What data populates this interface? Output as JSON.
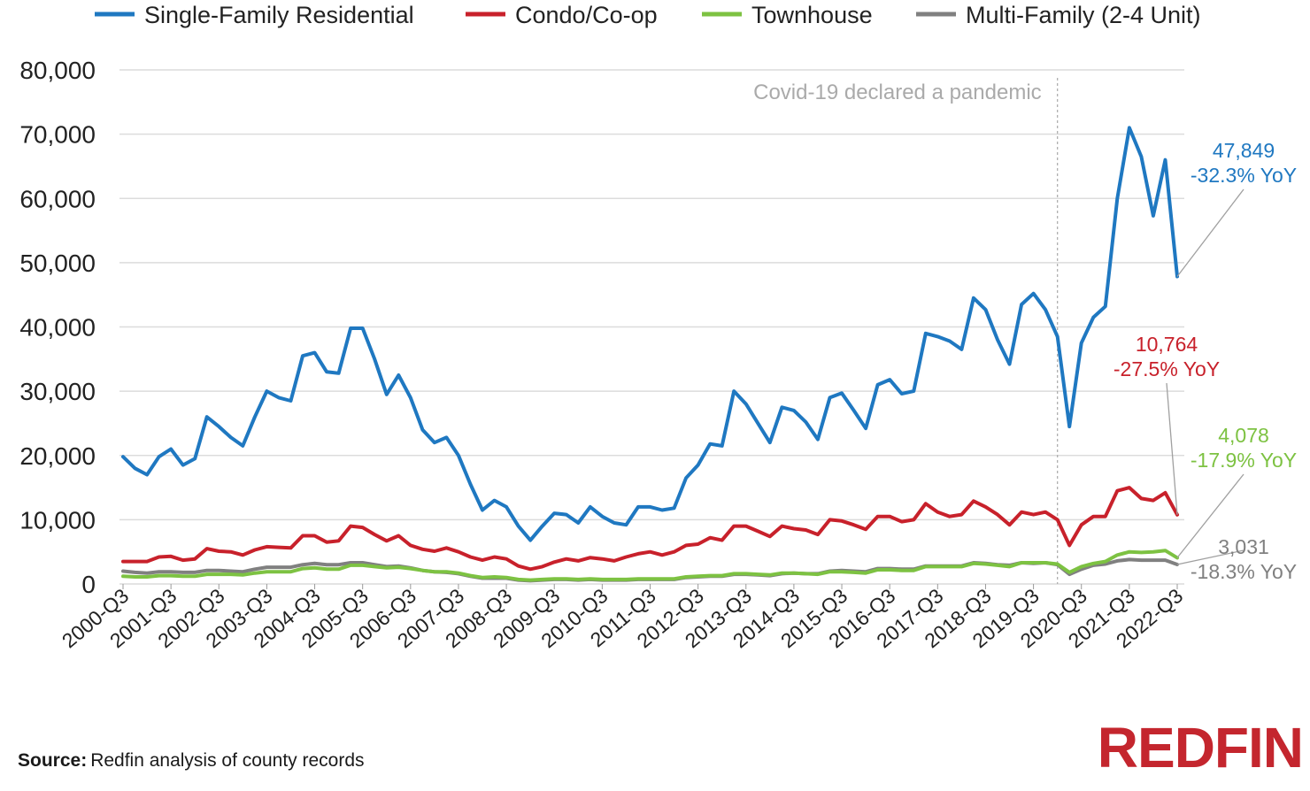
{
  "chart_data": {
    "type": "line",
    "title": "",
    "xlabel": "",
    "ylabel": "",
    "ylim": [
      0,
      80000
    ],
    "yticks": [
      0,
      10000,
      20000,
      30000,
      40000,
      50000,
      60000,
      70000,
      80000
    ],
    "ytick_labels": [
      "0",
      "10,000",
      "20,000",
      "30,000",
      "40,000",
      "50,000",
      "60,000",
      "70,000",
      "80,000"
    ],
    "grid": "horizontal",
    "legend_position": "top",
    "x_tick_labels": [
      "2000-Q3",
      "2001-Q3",
      "2002-Q3",
      "2003-Q3",
      "2004-Q3",
      "2005-Q3",
      "2006-Q3",
      "2007-Q3",
      "2008-Q3",
      "2009-Q3",
      "2010-Q3",
      "2011-Q3",
      "2012-Q3",
      "2013-Q3",
      "2014-Q3",
      "2015-Q3",
      "2016-Q3",
      "2017-Q3",
      "2018-Q3",
      "2019-Q3",
      "2020-Q3",
      "2021-Q3",
      "2022-Q3"
    ],
    "x_start": "2000-Q3",
    "x_end": "2022-Q3",
    "series": [
      {
        "name": "Single-Family Residential",
        "color": "#1f78c1",
        "values": [
          19800,
          18000,
          17000,
          19800,
          21000,
          18500,
          19500,
          26000,
          24500,
          22800,
          21500,
          26000,
          30000,
          29000,
          28500,
          35500,
          36000,
          33000,
          32800,
          39800,
          39800,
          35000,
          29500,
          32500,
          29000,
          24000,
          22000,
          22800,
          20000,
          15500,
          11500,
          13000,
          12000,
          9000,
          6800,
          9000,
          11000,
          10800,
          9500,
          12000,
          10500,
          9500,
          9200,
          12000,
          12000,
          11500,
          11800,
          16500,
          18500,
          21800,
          21500,
          30000,
          28000,
          25000,
          22000,
          27500,
          27000,
          25200,
          22500,
          29000,
          29700,
          27000,
          24200,
          31000,
          31800,
          29600,
          30000,
          39000,
          38500,
          37800,
          36500,
          44500,
          42700,
          38000,
          34200,
          43500,
          45200,
          42700,
          38500,
          24500,
          37500,
          41500,
          43200,
          60000,
          71000,
          66500,
          57300,
          66000,
          47849
        ]
      },
      {
        "name": "Condo/Co-op",
        "color": "#c8212b",
        "values": [
          3500,
          3500,
          3500,
          4200,
          4300,
          3700,
          3900,
          5500,
          5100,
          5000,
          4500,
          5300,
          5800,
          5700,
          5600,
          7500,
          7500,
          6500,
          6700,
          9000,
          8800,
          7700,
          6700,
          7500,
          6000,
          5400,
          5100,
          5600,
          5000,
          4200,
          3700,
          4200,
          3900,
          2800,
          2300,
          2700,
          3400,
          3900,
          3600,
          4100,
          3900,
          3600,
          4200,
          4700,
          5000,
          4500,
          5000,
          6000,
          6200,
          7200,
          6800,
          9000,
          9000,
          8200,
          7400,
          9000,
          8600,
          8400,
          7700,
          10000,
          9800,
          9200,
          8500,
          10500,
          10500,
          9700,
          10000,
          12500,
          11200,
          10500,
          10800,
          12900,
          12000,
          10800,
          9200,
          11200,
          10800,
          11200,
          10000,
          6000,
          9200,
          10500,
          10500,
          14500,
          15000,
          13300,
          13000,
          14200,
          10764
        ]
      },
      {
        "name": "Townhouse",
        "color": "#7dc242",
        "values": [
          1200,
          1100,
          1100,
          1300,
          1300,
          1200,
          1200,
          1500,
          1500,
          1500,
          1400,
          1700,
          1900,
          1900,
          1900,
          2400,
          2500,
          2300,
          2300,
          2900,
          2900,
          2700,
          2500,
          2600,
          2400,
          2100,
          1900,
          1900,
          1700,
          1300,
          1000,
          1100,
          1000,
          700,
          600,
          700,
          800,
          800,
          700,
          800,
          700,
          700,
          700,
          800,
          800,
          800,
          800,
          1100,
          1200,
          1300,
          1300,
          1600,
          1600,
          1500,
          1400,
          1700,
          1700,
          1600,
          1500,
          1900,
          1900,
          1800,
          1700,
          2200,
          2200,
          2100,
          2100,
          2700,
          2700,
          2700,
          2700,
          3200,
          3100,
          2900,
          2700,
          3300,
          3300,
          3300,
          3100,
          1800,
          2700,
          3200,
          3500,
          4500,
          5000,
          4900,
          5000,
          5200,
          4078
        ]
      },
      {
        "name": "Multi-Family (2-4 Unit)",
        "color": "#808080",
        "values": [
          2000,
          1800,
          1700,
          1900,
          1900,
          1800,
          1800,
          2100,
          2100,
          2000,
          1900,
          2300,
          2600,
          2600,
          2600,
          3000,
          3200,
          3000,
          3000,
          3300,
          3300,
          3000,
          2700,
          2800,
          2500,
          2100,
          1900,
          1800,
          1600,
          1200,
          900,
          900,
          900,
          600,
          500,
          600,
          700,
          700,
          600,
          700,
          600,
          600,
          600,
          700,
          700,
          700,
          700,
          1000,
          1100,
          1200,
          1200,
          1500,
          1500,
          1400,
          1300,
          1600,
          1700,
          1600,
          1600,
          2000,
          2100,
          2000,
          1900,
          2400,
          2400,
          2300,
          2300,
          2800,
          2800,
          2800,
          2800,
          3300,
          3200,
          3000,
          2900,
          3300,
          3200,
          3300,
          3000,
          1500,
          2300,
          2900,
          3100,
          3600,
          3800,
          3700,
          3700,
          3700,
          3031
        ]
      }
    ],
    "annotations": {
      "event_line_label": "Covid-19 declared a pandemic",
      "event_x": "2020-Q1",
      "end_labels": [
        {
          "series": "Single-Family Residential",
          "value": "47,849",
          "change": "-32.3% YoY",
          "color": "#1f78c1"
        },
        {
          "series": "Condo/Co-op",
          "value": "10,764",
          "change": "-27.5% YoY",
          "color": "#c8212b"
        },
        {
          "series": "Townhouse",
          "value": "4,078",
          "change": "-17.9% YoY",
          "color": "#7dc242"
        },
        {
          "series": "Multi-Family (2-4 Unit)",
          "value": "3,031",
          "change": "-18.3% YoY",
          "color": "#808080"
        }
      ]
    }
  },
  "source": {
    "label": "Source:",
    "text": "Redfin analysis of county records"
  },
  "logo_text": "REDFIN"
}
